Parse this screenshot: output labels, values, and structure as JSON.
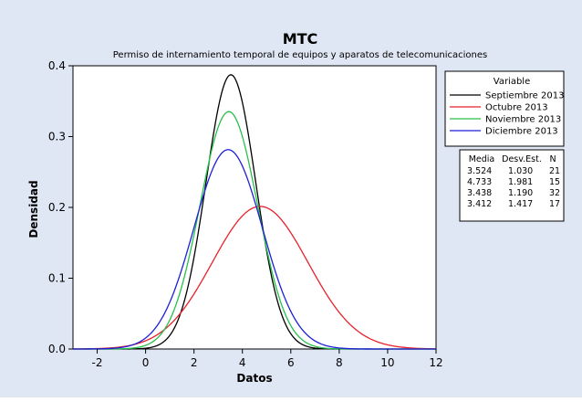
{
  "chart_data": {
    "type": "line",
    "title": "MTC",
    "subtitle": "Permiso de internamiento temporal de equipos y aparatos de telecomunicaciones",
    "xlabel": "Datos",
    "ylabel": "Densidad",
    "xlim": [
      -3.0,
      12.0
    ],
    "ylim": [
      0,
      0.4
    ],
    "xticks": [
      -2,
      0,
      2,
      4,
      6,
      8,
      10,
      12
    ],
    "yticks": [
      0.0,
      0.1,
      0.2,
      0.3,
      0.4
    ],
    "xtick_labels": [
      "-2",
      "0",
      "2",
      "4",
      "6",
      "8",
      "10",
      "12"
    ],
    "ytick_labels": [
      "0.0",
      "0.1",
      "0.2",
      "0.3",
      "0.4"
    ],
    "legend_title": "Variable",
    "legend_position": "right",
    "series": [
      {
        "name": "Septiembre 2013",
        "color": "#000000",
        "mean": 3.524,
        "sd": 1.03,
        "n": 21,
        "mean_label": "3.524",
        "sd_label": "1.030",
        "n_label": "21"
      },
      {
        "name": "Octubre 2013",
        "color": "#e8222b",
        "mean": 4.733,
        "sd": 1.981,
        "n": 15,
        "mean_label": "4.733",
        "sd_label": "1.981",
        "n_label": "15"
      },
      {
        "name": "Noviembre 2013",
        "color": "#27c04c",
        "mean": 3.438,
        "sd": 1.19,
        "n": 32,
        "mean_label": "3.438",
        "sd_label": "1.190",
        "n_label": "32"
      },
      {
        "name": "Diciembre 2013",
        "color": "#1f1fd8",
        "mean": 3.412,
        "sd": 1.417,
        "n": 17,
        "mean_label": "3.412",
        "sd_label": "1.417",
        "n_label": "17"
      }
    ],
    "stats_headers": [
      "Media",
      "Desv.Est.",
      "N"
    ]
  }
}
